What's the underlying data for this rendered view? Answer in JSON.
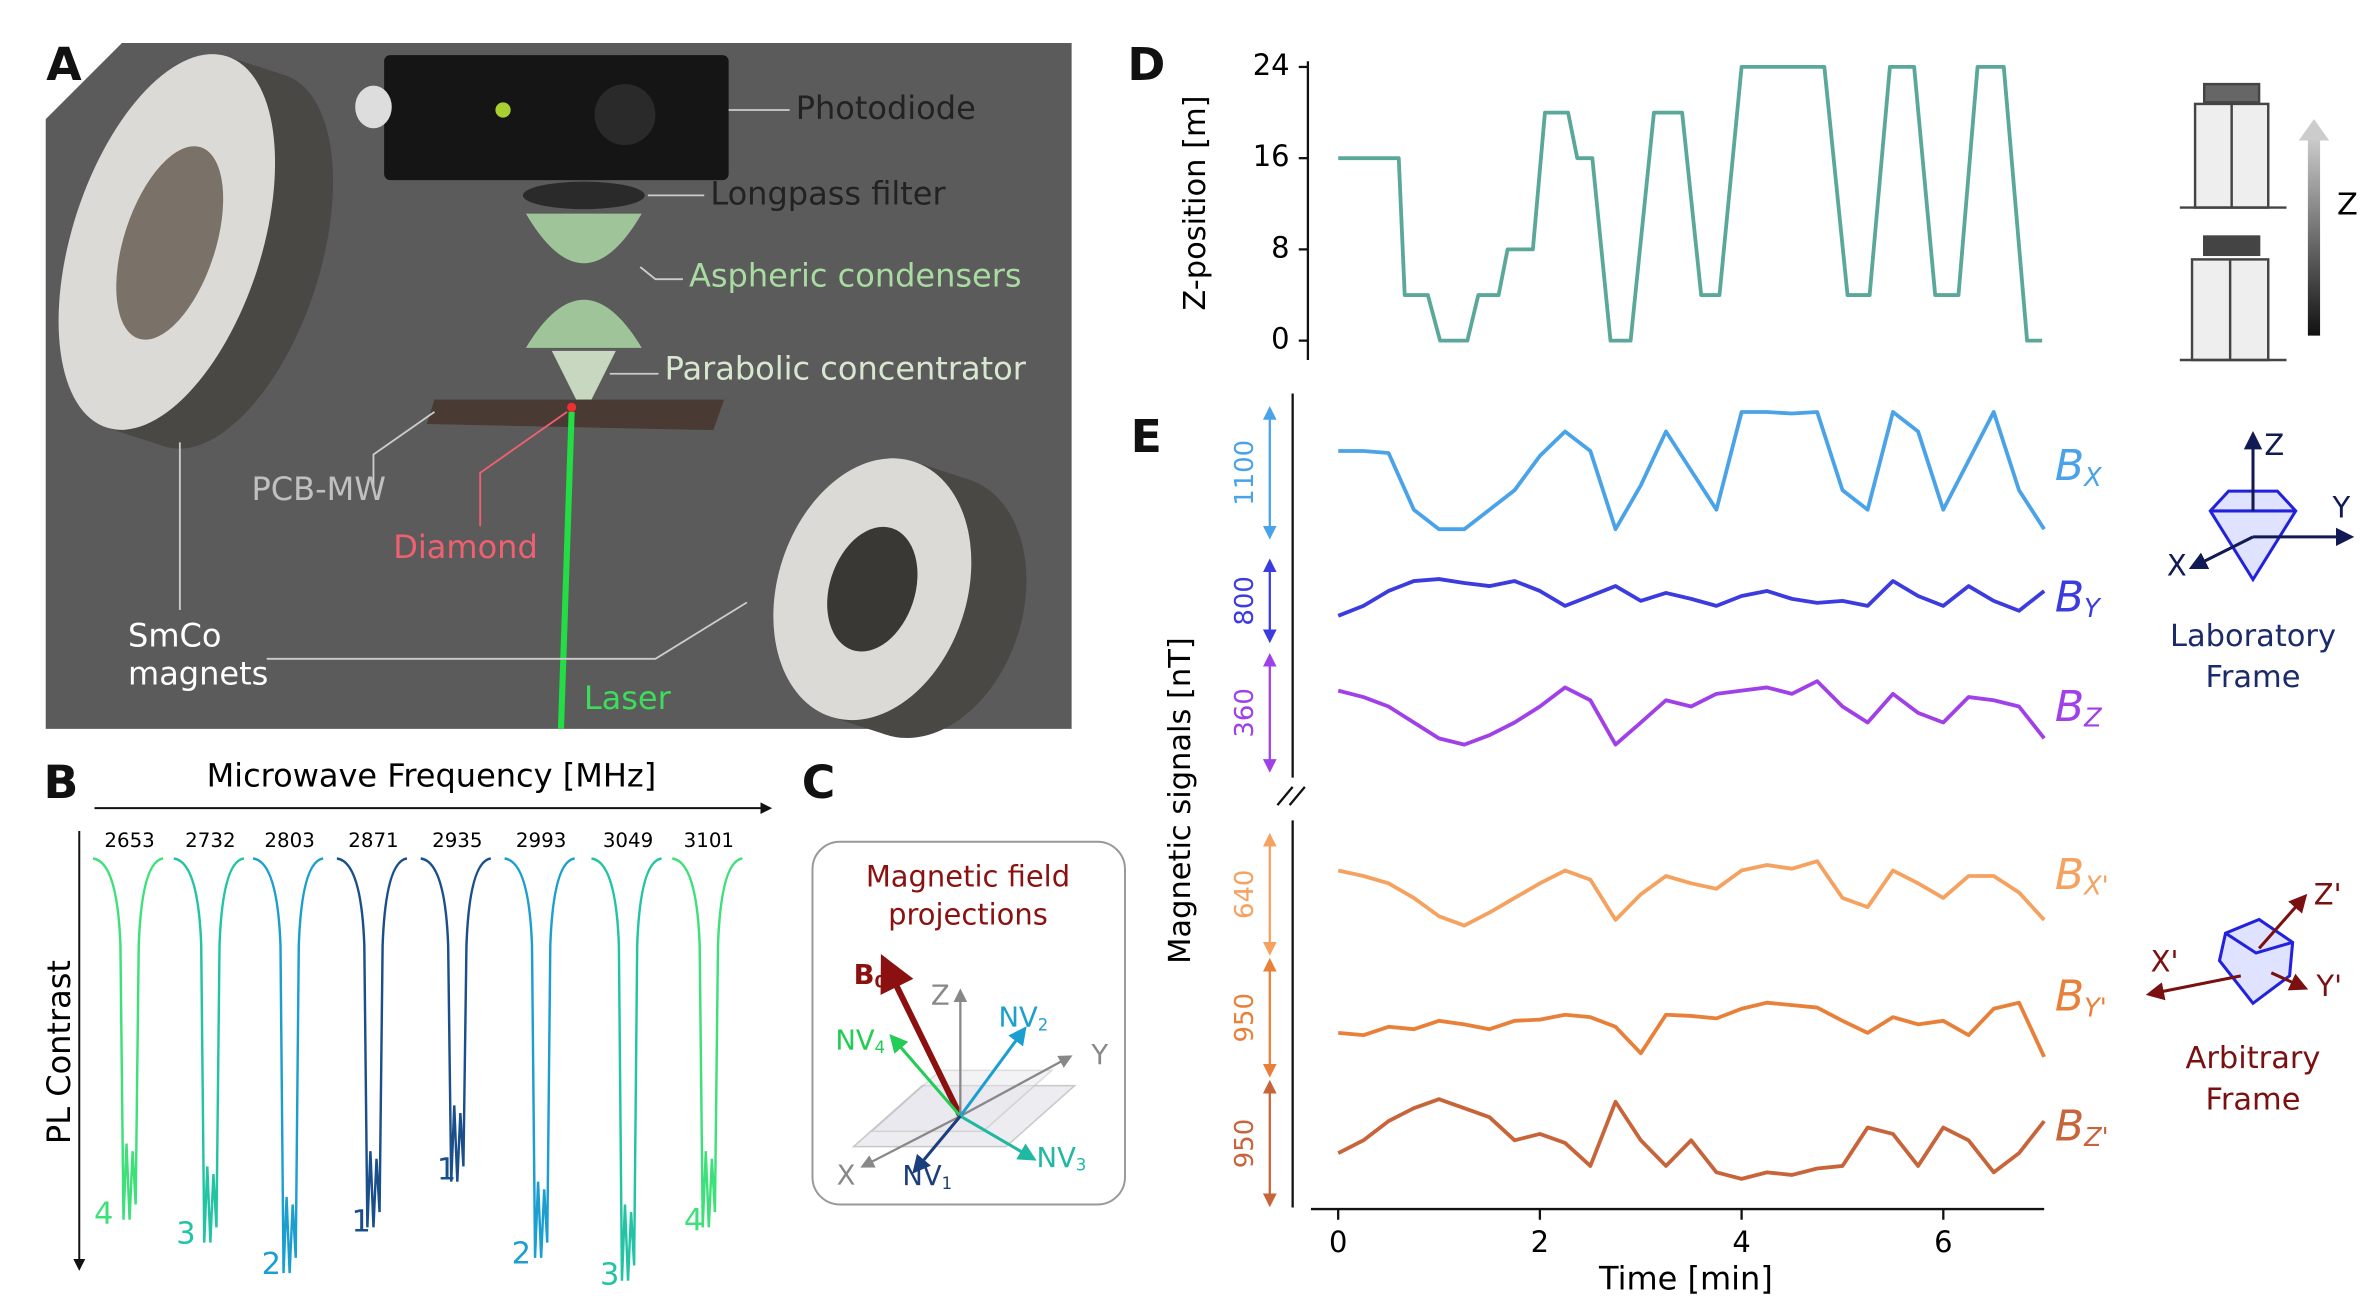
{
  "figure": {
    "panels": [
      "A",
      "B",
      "C",
      "D",
      "E"
    ],
    "apparatus": {
      "photodiode": "Photodiode",
      "filter": "Longpass filter",
      "condensers": "Aspheric condensers",
      "concentrator": "Parabolic concentrator",
      "pcb": "PCB-MW",
      "diamond": "Diamond",
      "magnets": [
        "SmCo",
        "magnets"
      ],
      "laser": "Laser"
    },
    "spectrum": {
      "xlabel": "Microwave Frequency [MHz]",
      "ylabel": "PL Contrast",
      "frequencies": [
        2653,
        2732,
        2803,
        2871,
        2935,
        2993,
        3049,
        3101
      ],
      "groups": [
        4,
        3,
        2,
        1,
        1,
        2,
        3,
        4
      ]
    },
    "projections": {
      "title": [
        "Magnetic field",
        "projections"
      ],
      "field": {
        "label": "B",
        "sub": "0"
      },
      "axes": [
        "Z",
        "Y",
        "X"
      ],
      "nv": [
        {
          "label": "NV",
          "sub": "4"
        },
        {
          "label": "NV",
          "sub": "2"
        },
        {
          "label": "NV",
          "sub": "3"
        },
        {
          "label": "NV",
          "sub": "1"
        }
      ]
    },
    "elevator_axis": "Z",
    "lab_frame": {
      "axes": [
        "Z",
        "Y",
        "X"
      ],
      "title": [
        "Laboratory",
        "Frame"
      ]
    },
    "arbitrary_frame": {
      "axes": [
        "Z'",
        "Y'",
        "X'"
      ],
      "title": [
        "Arbitrary",
        "Frame"
      ]
    }
  },
  "chart_data": [
    {
      "type": "line",
      "ylabel": "Z-position [m]",
      "color": "#5aa89a",
      "xlim": [
        -0.27,
        7.0
      ],
      "ylim": [
        -1.7,
        24.5
      ],
      "yticks": [
        0,
        8,
        16,
        24
      ],
      "x": [
        0,
        0.6,
        0.66,
        0.89,
        1.01,
        1.28,
        1.39,
        1.59,
        1.68,
        1.93,
        2.05,
        2.28,
        2.37,
        2.52,
        2.7,
        2.9,
        3.13,
        3.41,
        3.6,
        3.78,
        4.0,
        4.82,
        5.05,
        5.27,
        5.47,
        5.71,
        5.92,
        6.15,
        6.34,
        6.6,
        6.83,
        6.98
      ],
      "values": [
        16,
        16,
        4,
        4,
        0,
        0,
        4,
        4,
        8,
        8,
        20,
        20,
        16,
        16,
        0,
        0,
        20,
        20,
        4,
        4,
        24,
        24,
        4,
        4,
        24,
        24,
        4,
        4,
        24,
        24,
        0,
        0
      ]
    },
    {
      "type": "stacked-traces",
      "ylabel": "Magnetic signals [nT]",
      "xlabel": "Time [min]",
      "xlim": [
        -0.27,
        7.0
      ],
      "xticks": [
        0,
        2,
        4,
        6
      ],
      "x": [
        0,
        0.25,
        0.5,
        0.75,
        1,
        1.25,
        1.5,
        1.75,
        2,
        2.25,
        2.5,
        2.75,
        3,
        3.25,
        3.5,
        3.75,
        4,
        4.25,
        4.5,
        4.75,
        5,
        5.25,
        5.5,
        5.75,
        6,
        6.25,
        6.5,
        6.75,
        7
      ],
      "series": [
        {
          "name": "B",
          "sub": "X",
          "color": "#4aa3e8",
          "scale": 1100,
          "values": [
            737,
            737,
            720,
            233,
            65,
            65,
            233,
            401,
            695,
            905,
            737,
            65,
            443,
            905,
            569,
            233,
            1073,
            1073,
            1060,
            1073,
            401,
            233,
            1073,
            905,
            233,
            653,
            1073,
            401,
            65
          ]
        },
        {
          "name": "B",
          "sub": "Y",
          "color": "#3b3be0",
          "scale": 800,
          "values": [
            250,
            350,
            500,
            600,
            620,
            580,
            550,
            600,
            500,
            350,
            450,
            550,
            400,
            480,
            420,
            350,
            450,
            500,
            420,
            380,
            400,
            350,
            600,
            450,
            350,
            550,
            400,
            300,
            500
          ]
        },
        {
          "name": "B",
          "sub": "Z",
          "color": "#a040e8",
          "scale": 360,
          "values": [
            250,
            230,
            200,
            150,
            100,
            80,
            110,
            150,
            200,
            260,
            220,
            80,
            150,
            220,
            200,
            240,
            250,
            260,
            240,
            280,
            200,
            150,
            240,
            180,
            150,
            230,
            220,
            200,
            100
          ]
        },
        {
          "name": "B",
          "sub": "X'",
          "color": "#f5a260",
          "scale": 640,
          "values": [
            450,
            420,
            380,
            300,
            200,
            150,
            220,
            300,
            380,
            450,
            400,
            180,
            320,
            420,
            380,
            350,
            450,
            480,
            460,
            500,
            300,
            250,
            450,
            380,
            300,
            420,
            420,
            330,
            180
          ]
        },
        {
          "name": "B",
          "sub": "Y'",
          "color": "#e8803a",
          "scale": 950,
          "values": [
            350,
            330,
            400,
            380,
            450,
            420,
            380,
            450,
            460,
            500,
            480,
            400,
            180,
            500,
            490,
            470,
            550,
            600,
            580,
            560,
            450,
            350,
            480,
            420,
            450,
            330,
            550,
            600,
            150
          ]
        },
        {
          "name": "B",
          "sub": "Z'",
          "color": "#c8643a",
          "scale": 950,
          "values": [
            400,
            500,
            650,
            750,
            820,
            750,
            680,
            500,
            550,
            480,
            300,
            800,
            500,
            300,
            500,
            250,
            200,
            250,
            230,
            280,
            300,
            600,
            550,
            300,
            600,
            500,
            250,
            400,
            650
          ]
        }
      ]
    }
  ]
}
